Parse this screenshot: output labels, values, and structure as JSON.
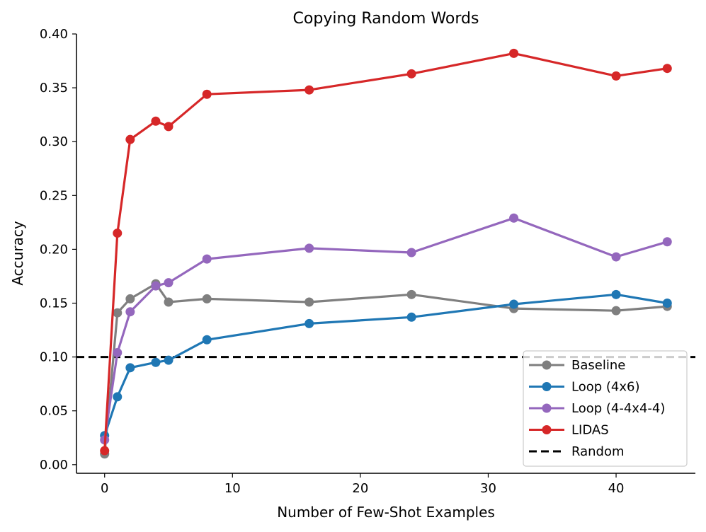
{
  "chart_data": {
    "type": "line",
    "title": "Copying Random Words",
    "xlabel": "Number of Few-Shot Examples",
    "ylabel": "Accuracy",
    "xlim": [
      -2.2,
      46.2
    ],
    "ylim": [
      -0.008,
      0.4
    ],
    "xticks": [
      0,
      10,
      20,
      30,
      40
    ],
    "xtick_labels": [
      "0",
      "10",
      "20",
      "30",
      "40"
    ],
    "yticks": [
      0.0,
      0.05,
      0.1,
      0.15,
      0.2,
      0.25,
      0.3,
      0.35,
      0.4
    ],
    "ytick_labels": [
      "0.00",
      "0.05",
      "0.10",
      "0.15",
      "0.20",
      "0.25",
      "0.30",
      "0.35",
      "0.40"
    ],
    "grid": false,
    "legend_position": "lower-right",
    "x": [
      0,
      1,
      2,
      4,
      5,
      8,
      16,
      24,
      32,
      40,
      44
    ],
    "series": [
      {
        "name": "Baseline",
        "color": "#7f7f7f",
        "values": [
          0.01,
          0.141,
          0.154,
          0.168,
          0.151,
          0.154,
          0.151,
          0.158,
          0.145,
          0.143,
          0.147
        ]
      },
      {
        "name": "Loop (4x6)",
        "color": "#1f77b4",
        "values": [
          0.027,
          0.063,
          0.09,
          0.095,
          0.097,
          0.116,
          0.131,
          0.137,
          0.149,
          0.158,
          0.15
        ]
      },
      {
        "name": "Loop (4-4x4-4)",
        "color": "#9467bd",
        "values": [
          0.023,
          0.104,
          0.142,
          0.166,
          0.169,
          0.191,
          0.201,
          0.197,
          0.229,
          0.193,
          0.207
        ]
      },
      {
        "name": "LIDAS",
        "color": "#d62728",
        "values": [
          0.013,
          0.215,
          0.302,
          0.319,
          0.314,
          0.344,
          0.348,
          0.363,
          0.382,
          0.361,
          0.368
        ]
      }
    ],
    "reference_lines": [
      {
        "name": "Random",
        "y": 0.1,
        "color": "#000000",
        "style": "dashed"
      }
    ]
  }
}
